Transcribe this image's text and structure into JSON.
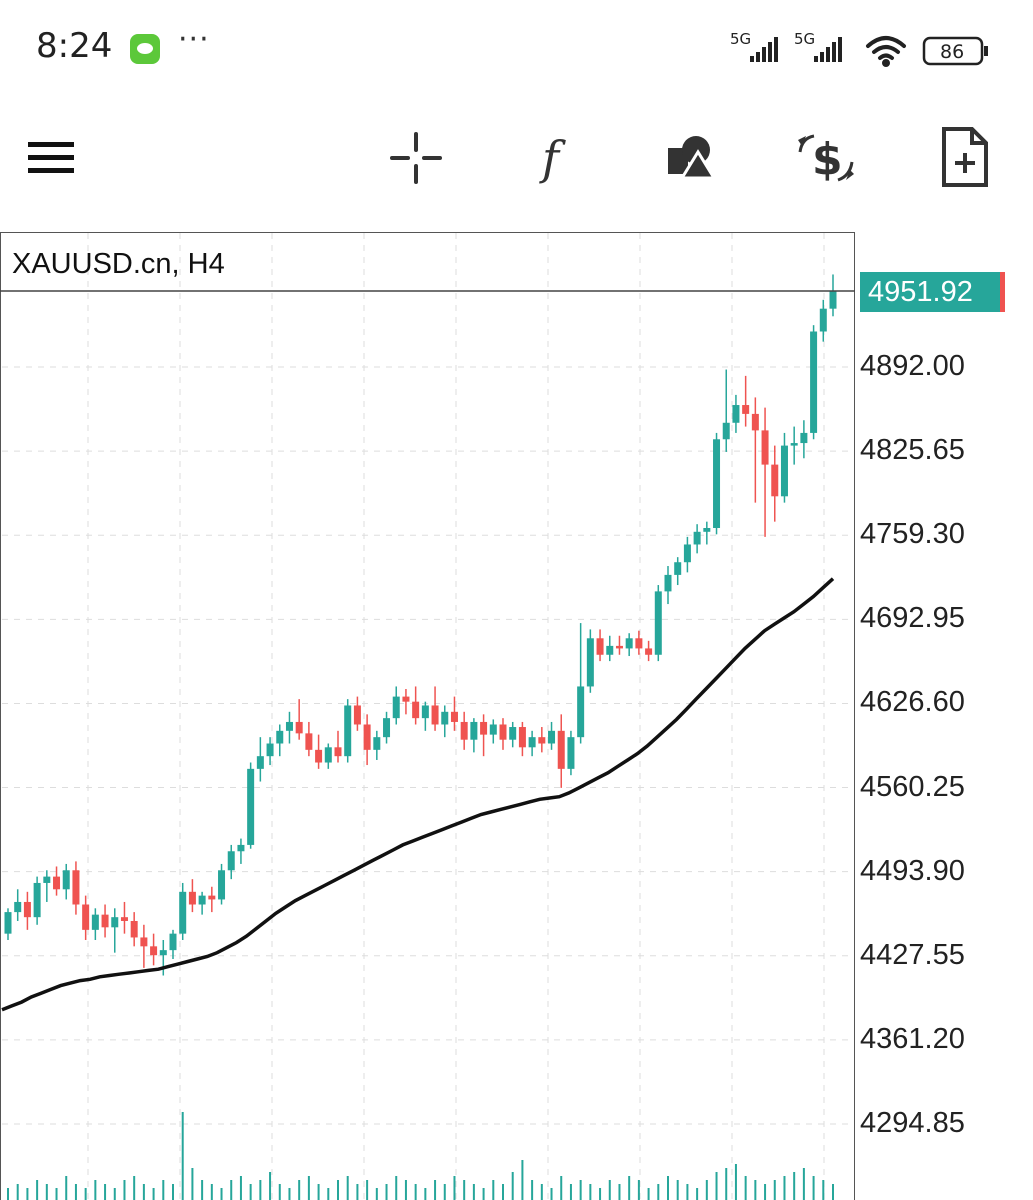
{
  "status_bar": {
    "time": "8:24",
    "dots": "···",
    "network_1": "5G",
    "network_2": "5G",
    "battery": "86",
    "icons": [
      "wechat-icon",
      "signal-icon",
      "wifi-icon",
      "battery-icon"
    ]
  },
  "toolbar": {
    "icons": [
      "menu-icon",
      "crosshair-icon",
      "indicator-f-icon",
      "objects-icon",
      "trade-dollar-icon",
      "new-order-icon"
    ]
  },
  "chart": {
    "title": "XAUUSD.cn, H4",
    "current_price": "4951.92",
    "y_labels": [
      "4892.00",
      "4825.65",
      "4759.30",
      "4692.95",
      "4626.60",
      "4560.25",
      "4493.90",
      "4427.55",
      "4361.20",
      "4294.85"
    ],
    "colors": {
      "up": "#26a69a",
      "down": "#ef5350",
      "ma": "#111111",
      "grid": "#dddddd"
    }
  },
  "chart_data": {
    "type": "candlestick",
    "symbol": "XAUUSD.cn",
    "timeframe": "H4",
    "ylim": [
      4280,
      4985
    ],
    "y_ticks": [
      4892.0,
      4825.65,
      4759.3,
      4692.95,
      4626.6,
      4560.25,
      4493.9,
      4427.55,
      4361.2,
      4294.85
    ],
    "last_price": 4951.92,
    "candles": [
      [
        4445,
        4465,
        4440,
        4462
      ],
      [
        4462,
        4480,
        4455,
        4470
      ],
      [
        4470,
        4478,
        4448,
        4458
      ],
      [
        4458,
        4490,
        4452,
        4485
      ],
      [
        4485,
        4495,
        4470,
        4490
      ],
      [
        4490,
        4498,
        4475,
        4480
      ],
      [
        4480,
        4500,
        4472,
        4495
      ],
      [
        4495,
        4502,
        4460,
        4468
      ],
      [
        4468,
        4475,
        4440,
        4448
      ],
      [
        4448,
        4465,
        4440,
        4460
      ],
      [
        4460,
        4468,
        4442,
        4450
      ],
      [
        4450,
        4465,
        4430,
        4458
      ],
      [
        4458,
        4470,
        4445,
        4455
      ],
      [
        4455,
        4462,
        4435,
        4442
      ],
      [
        4442,
        4452,
        4418,
        4435
      ],
      [
        4435,
        4445,
        4420,
        4428
      ],
      [
        4428,
        4440,
        4412,
        4432
      ],
      [
        4432,
        4448,
        4425,
        4445
      ],
      [
        4445,
        4485,
        4440,
        4478
      ],
      [
        4478,
        4488,
        4462,
        4468
      ],
      [
        4468,
        4478,
        4460,
        4475
      ],
      [
        4475,
        4482,
        4462,
        4472
      ],
      [
        4472,
        4500,
        4468,
        4495
      ],
      [
        4495,
        4515,
        4488,
        4510
      ],
      [
        4510,
        4520,
        4500,
        4515
      ],
      [
        4515,
        4580,
        4512,
        4575
      ],
      [
        4575,
        4600,
        4565,
        4585
      ],
      [
        4585,
        4600,
        4578,
        4595
      ],
      [
        4595,
        4610,
        4585,
        4605
      ],
      [
        4605,
        4620,
        4595,
        4612
      ],
      [
        4612,
        4630,
        4598,
        4603
      ],
      [
        4603,
        4612,
        4585,
        4590
      ],
      [
        4590,
        4602,
        4575,
        4580
      ],
      [
        4580,
        4595,
        4575,
        4592
      ],
      [
        4592,
        4605,
        4580,
        4585
      ],
      [
        4585,
        4630,
        4580,
        4625
      ],
      [
        4625,
        4632,
        4605,
        4610
      ],
      [
        4610,
        4618,
        4578,
        4590
      ],
      [
        4590,
        4605,
        4582,
        4600
      ],
      [
        4600,
        4620,
        4595,
        4615
      ],
      [
        4615,
        4640,
        4610,
        4632
      ],
      [
        4632,
        4638,
        4618,
        4628
      ],
      [
        4628,
        4640,
        4610,
        4615
      ],
      [
        4615,
        4628,
        4605,
        4625
      ],
      [
        4625,
        4640,
        4605,
        4610
      ],
      [
        4610,
        4625,
        4600,
        4620
      ],
      [
        4620,
        4632,
        4605,
        4612
      ],
      [
        4612,
        4620,
        4590,
        4598
      ],
      [
        4598,
        4615,
        4588,
        4612
      ],
      [
        4612,
        4618,
        4585,
        4602
      ],
      [
        4602,
        4614,
        4595,
        4610
      ],
      [
        4610,
        4615,
        4590,
        4598
      ],
      [
        4598,
        4612,
        4592,
        4608
      ],
      [
        4608,
        4612,
        4585,
        4592
      ],
      [
        4592,
        4605,
        4585,
        4600
      ],
      [
        4600,
        4608,
        4588,
        4595
      ],
      [
        4595,
        4612,
        4590,
        4605
      ],
      [
        4605,
        4618,
        4560,
        4575
      ],
      [
        4575,
        4605,
        4570,
        4600
      ],
      [
        4600,
        4690,
        4595,
        4640
      ],
      [
        4640,
        4685,
        4635,
        4678
      ],
      [
        4678,
        4685,
        4660,
        4665
      ],
      [
        4665,
        4680,
        4660,
        4672
      ],
      [
        4672,
        4680,
        4665,
        4670
      ],
      [
        4670,
        4682,
        4664,
        4678
      ],
      [
        4678,
        4684,
        4665,
        4670
      ],
      [
        4670,
        4676,
        4660,
        4665
      ],
      [
        4665,
        4720,
        4660,
        4715
      ],
      [
        4715,
        4735,
        4705,
        4728
      ],
      [
        4728,
        4742,
        4720,
        4738
      ],
      [
        4738,
        4758,
        4730,
        4752
      ],
      [
        4752,
        4768,
        4745,
        4762
      ],
      [
        4762,
        4770,
        4752,
        4765
      ],
      [
        4765,
        4840,
        4760,
        4835
      ],
      [
        4835,
        4890,
        4825,
        4848
      ],
      [
        4848,
        4870,
        4840,
        4862
      ],
      [
        4862,
        4885,
        4845,
        4855
      ],
      [
        4855,
        4868,
        4785,
        4842
      ],
      [
        4842,
        4860,
        4758,
        4815
      ],
      [
        4815,
        4830,
        4770,
        4790
      ],
      [
        4790,
        4840,
        4785,
        4830
      ],
      [
        4830,
        4845,
        4815,
        4832
      ],
      [
        4832,
        4850,
        4820,
        4840
      ],
      [
        4840,
        4925,
        4835,
        4920
      ],
      [
        4920,
        4945,
        4912,
        4938
      ],
      [
        4938,
        4965,
        4932,
        4952
      ]
    ],
    "moving_average": [
      4385,
      4388,
      4391,
      4395,
      4398,
      4401,
      4404,
      4406,
      4408,
      4409,
      4411,
      4412,
      4413,
      4414,
      4415,
      4416,
      4417,
      4419,
      4421,
      4423,
      4425,
      4427,
      4430,
      4434,
      4438,
      4443,
      4449,
      4455,
      4461,
      4466,
      4471,
      4475,
      4479,
      4483,
      4487,
      4491,
      4495,
      4499,
      4503,
      4507,
      4511,
      4515,
      4518,
      4521,
      4524,
      4527,
      4530,
      4533,
      4536,
      4539,
      4541,
      4543,
      4545,
      4547,
      4549,
      4551,
      4552,
      4553,
      4556,
      4560,
      4564,
      4568,
      4572,
      4577,
      4582,
      4587,
      4593,
      4600,
      4607,
      4614,
      4622,
      4630,
      4638,
      4646,
      4654,
      4662,
      4670,
      4677,
      4684,
      4689,
      4694,
      4699,
      4705,
      4711,
      4718,
      4725
    ],
    "volume": [
      3,
      4,
      3,
      5,
      4,
      3,
      6,
      4,
      3,
      5,
      4,
      3,
      5,
      6,
      4,
      3,
      5,
      4,
      22,
      8,
      5,
      4,
      3,
      5,
      6,
      4,
      5,
      7,
      4,
      3,
      5,
      6,
      4,
      3,
      5,
      6,
      4,
      5,
      3,
      4,
      6,
      5,
      4,
      3,
      5,
      4,
      6,
      5,
      4,
      3,
      5,
      4,
      7,
      10,
      5,
      4,
      3,
      6,
      4,
      5,
      4,
      3,
      5,
      4,
      6,
      5,
      3,
      4,
      6,
      5,
      4,
      3,
      5,
      7,
      8,
      9,
      6,
      5,
      4,
      5,
      6,
      7,
      8,
      6,
      5,
      4
    ]
  }
}
